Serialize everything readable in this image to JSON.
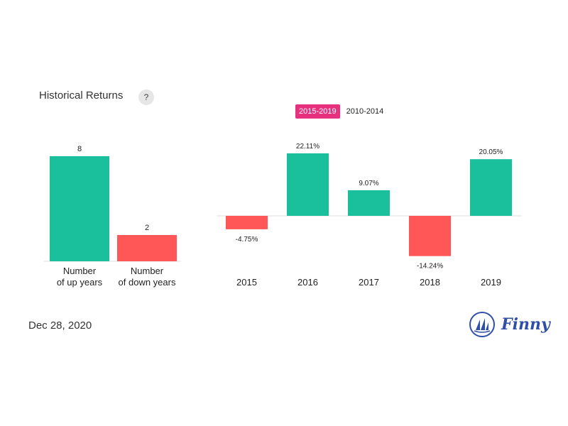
{
  "header": {
    "title": "Historical Returns",
    "help_label": "?"
  },
  "tabs": [
    {
      "label": "2015-2019",
      "active": true
    },
    {
      "label": "2010-2014",
      "active": false
    }
  ],
  "footer": {
    "date": "Dec 28, 2020",
    "brand": "Finny"
  },
  "colors": {
    "positive": "#1abf9c",
    "negative": "#ff5757",
    "active_tab": "#e8317e",
    "brand": "#2f4fa8"
  },
  "chart_data": [
    {
      "type": "bar",
      "categories": [
        [
          "Number",
          "of up years"
        ],
        [
          "Number",
          "of down years"
        ]
      ],
      "values": [
        8,
        2
      ],
      "value_labels": [
        "8",
        "2"
      ],
      "colors": [
        "#1abf9c",
        "#ff5757"
      ],
      "ylim": [
        0,
        8
      ]
    },
    {
      "type": "bar",
      "categories": [
        "2015",
        "2016",
        "2017",
        "2018",
        "2019"
      ],
      "values": [
        -4.75,
        22.11,
        9.07,
        -14.24,
        20.05
      ],
      "value_labels": [
        "-4.75%",
        "22.11%",
        "9.07%",
        "-14.24%",
        "20.05%"
      ],
      "ylim": [
        -14.24,
        22.11
      ]
    }
  ]
}
